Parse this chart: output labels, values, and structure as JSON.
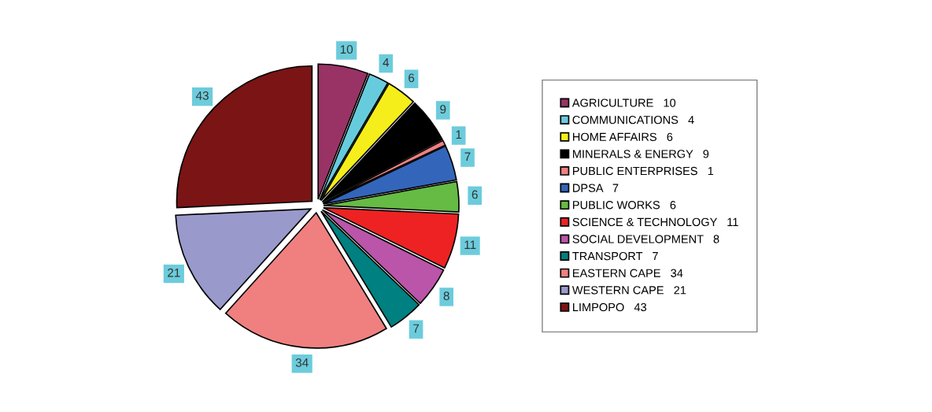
{
  "chart_data": {
    "type": "pie",
    "categories": [
      "AGRICULTURE   10",
      "COMMUNICATIONS   4",
      "HOME AFFAIRS   6",
      "MINERALS & ENERGY   9",
      "PUBLIC ENTERPRISES   1",
      "DPSA   7",
      "PUBLIC WORKS   6",
      "SCIENCE & TECHNOLOGY   11",
      "SOCIAL DEVELOPMENT   8",
      "TRANSPORT   7",
      "EASTERN CAPE   34",
      "WESTERN CAPE   21",
      "LIMPOPO   43"
    ],
    "values": [
      10,
      4,
      6,
      9,
      1,
      7,
      6,
      11,
      8,
      7,
      34,
      21,
      43
    ],
    "colors": [
      "#993366",
      "#66CCDD",
      "#F5EE1A",
      "#000000",
      "#F08080",
      "#3366BB",
      "#66BB44",
      "#EE2222",
      "#BB55AA",
      "#008080",
      "#F08080",
      "#9999CC",
      "#7B1414"
    ],
    "data_labels": true,
    "legend": "right"
  }
}
